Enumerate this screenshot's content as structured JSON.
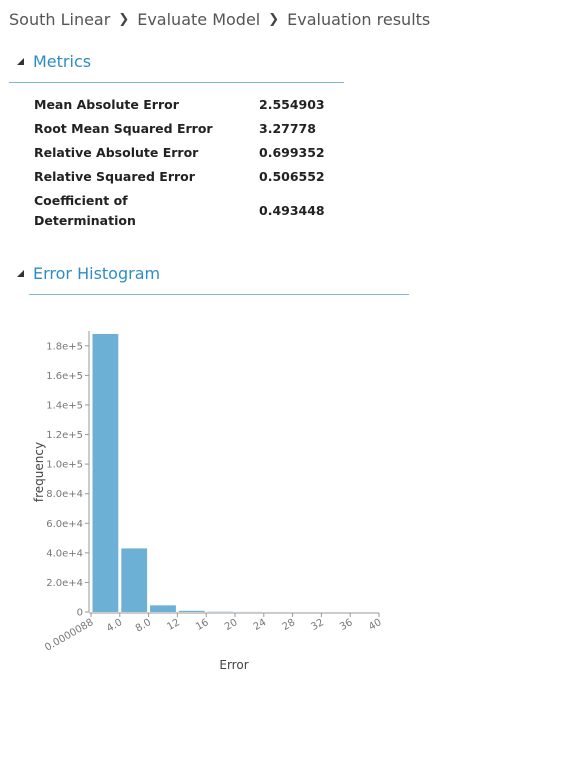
{
  "breadcrumb": {
    "items": [
      "South Linear",
      "Evaluate Model",
      "Evaluation results"
    ]
  },
  "sections": {
    "metrics_title": "Metrics",
    "histogram_title": "Error Histogram"
  },
  "metrics": [
    {
      "name": "Mean Absolute Error",
      "value": "2.554903"
    },
    {
      "name": "Root Mean Squared Error",
      "value": "3.27778"
    },
    {
      "name": "Relative Absolute Error",
      "value": "0.699352"
    },
    {
      "name": "Relative Squared Error",
      "value": "0.506552"
    },
    {
      "name": "Coefficient of Determination",
      "value": "0.493448"
    }
  ],
  "colors": {
    "accent": "#2f8dc4",
    "bar": "#6cb0d6",
    "axis": "#999999"
  },
  "chart_data": {
    "type": "bar",
    "xlabel": "Error",
    "ylabel": "frequency",
    "x_tick_labels": [
      "0.0000088",
      "4.0",
      "8.0",
      "12",
      "16",
      "20",
      "24",
      "28",
      "32",
      "36",
      "40"
    ],
    "bin_edges": [
      8.8e-06,
      4,
      8,
      12,
      16,
      20,
      24,
      28,
      32,
      36,
      40
    ],
    "values": [
      188000,
      43000,
      4500,
      800,
      200,
      80,
      30,
      10,
      5,
      2
    ],
    "ylim": [
      0,
      190000
    ],
    "y_ticks": [
      0,
      20000,
      40000,
      60000,
      80000,
      100000,
      120000,
      140000,
      160000,
      180000
    ],
    "y_tick_labels": [
      "0",
      "2.0e+4",
      "4.0e+4",
      "6.0e+4",
      "8.0e+4",
      "1.0e+5",
      "1.2e+5",
      "1.4e+5",
      "1.6e+5",
      "1.8e+5"
    ],
    "grid": false
  }
}
